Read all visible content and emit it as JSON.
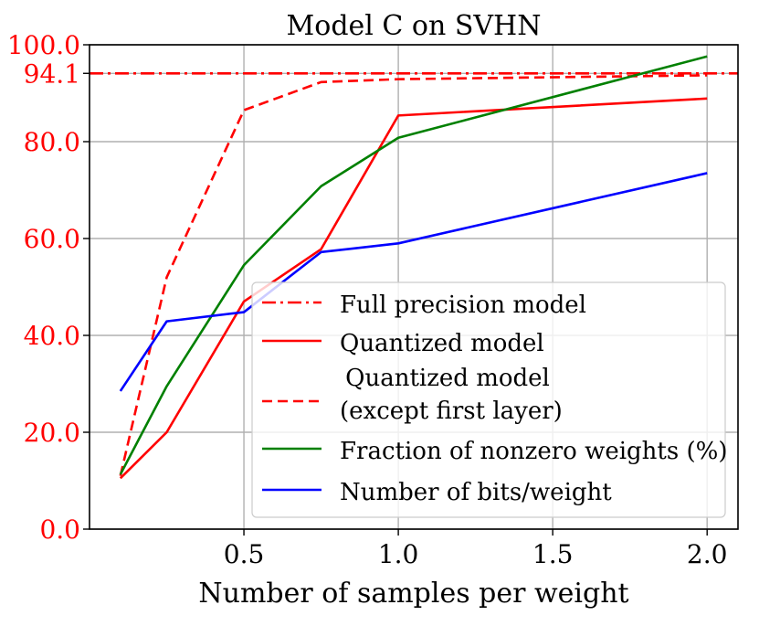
{
  "chart_data": {
    "type": "line",
    "title": "Model C on SVHN",
    "xlabel": "Number of samples per weight",
    "ylabel": "",
    "xlim": [
      0.0,
      2.1
    ],
    "ylim": [
      0.0,
      100.0
    ],
    "grid": true,
    "x_ticks": [
      0.5,
      1.0,
      1.5,
      2.0
    ],
    "x_tick_labels": [
      "0.5",
      "1.0",
      "1.5",
      "2.0"
    ],
    "y_ticks": [
      0.0,
      20.0,
      40.0,
      60.0,
      80.0,
      94.1,
      100.0
    ],
    "y_tick_labels": [
      "0.0",
      "20.0",
      "40.0",
      "60.0",
      "80.0",
      "94.1",
      "100.0"
    ],
    "y_tick_color": "#ff0000",
    "legend_position": "lower-right",
    "series": [
      {
        "name": "Full precision model",
        "color": "#ff0000",
        "style": "dashdot",
        "x": [
          0.0,
          2.1
        ],
        "values": [
          94.1,
          94.1
        ]
      },
      {
        "name": "Quantized model",
        "color": "#ff0000",
        "style": "solid",
        "x": [
          0.1,
          0.25,
          0.5,
          0.75,
          1.0,
          2.0
        ],
        "values": [
          10.5,
          20.0,
          47.0,
          57.8,
          85.4,
          88.9
        ]
      },
      {
        "name": "Quantized model\n(except first layer)",
        "legend_lines": [
          "Quantized model",
          "(except first layer)"
        ],
        "color": "#ff0000",
        "style": "dashed",
        "x": [
          0.1,
          0.25,
          0.5,
          0.75,
          1.0,
          2.0
        ],
        "values": [
          11.0,
          52.0,
          86.5,
          92.3,
          92.9,
          93.7
        ]
      },
      {
        "name": "Fraction of nonzero weights (%)",
        "color": "#008000",
        "style": "solid",
        "x": [
          0.1,
          0.25,
          0.5,
          0.75,
          1.0,
          2.0
        ],
        "values": [
          11.3,
          29.5,
          54.5,
          70.8,
          80.8,
          97.6
        ]
      },
      {
        "name": "Number of bits/weight",
        "color": "#0000ff",
        "style": "solid",
        "x": [
          0.1,
          0.25,
          0.5,
          0.75,
          1.0,
          2.0
        ],
        "values": [
          28.5,
          42.9,
          44.8,
          57.2,
          59.0,
          73.5
        ]
      }
    ]
  }
}
